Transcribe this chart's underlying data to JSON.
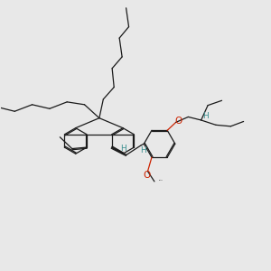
{
  "bg_color": "#e8e8e8",
  "bond_color": "#1a1a1a",
  "oxygen_color": "#cc2200",
  "h_color": "#3a9090",
  "lw": 0.9,
  "dbl_sep": 0.004,
  "figsize": [
    3.0,
    3.0
  ],
  "dpi": 100,
  "xlim": [
    0.0,
    1.0
  ],
  "ylim": [
    0.0,
    1.0
  ]
}
